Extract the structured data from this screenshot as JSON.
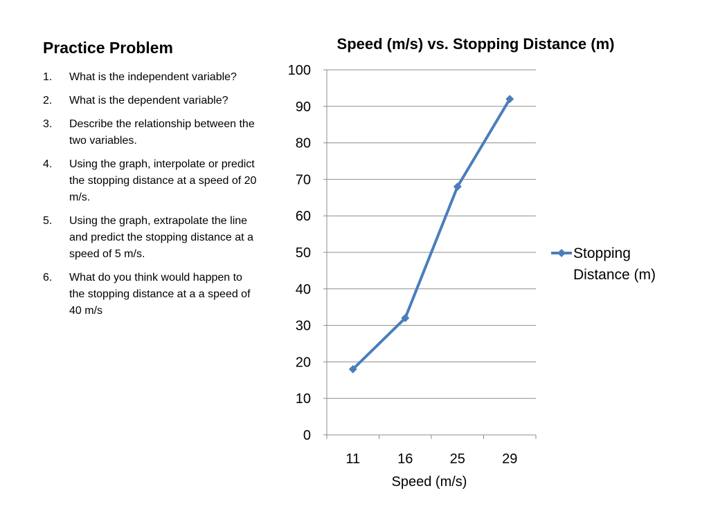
{
  "slide": {
    "title": "Practice Problem",
    "questions": [
      {
        "num": "1.",
        "text": "What is the independent variable?"
      },
      {
        "num": "2.",
        "text": "What is the dependent variable?"
      },
      {
        "num": "3.",
        "text": "Describe the relationship between the two variables."
      },
      {
        "num": "4.",
        "text": "Using the graph, interpolate or predict the stopping distance at a speed of 20 m/s."
      },
      {
        "num": "5.",
        "text": "Using the graph, extrapolate the line and predict the stopping distance at a speed of 5 m/s."
      },
      {
        "num": "6.",
        "text": "What do you think would happen to the stopping distance at a a speed of 40 m/s"
      }
    ]
  },
  "chart_data": {
    "type": "line",
    "title": "Speed (m/s) vs. Stopping Distance (m)",
    "xlabel": "Speed (m/s)",
    "ylabel": "",
    "categories": [
      "11",
      "16",
      "25",
      "29"
    ],
    "series": [
      {
        "name": "Stopping Distance (m)",
        "values": [
          18,
          32,
          68,
          92
        ],
        "color": "#4a7ebb",
        "marker": "diamond"
      }
    ],
    "ylim": [
      0,
      100
    ],
    "yticks": [
      0,
      10,
      20,
      30,
      40,
      50,
      60,
      70,
      80,
      90,
      100
    ],
    "grid": true,
    "legend": "right"
  }
}
